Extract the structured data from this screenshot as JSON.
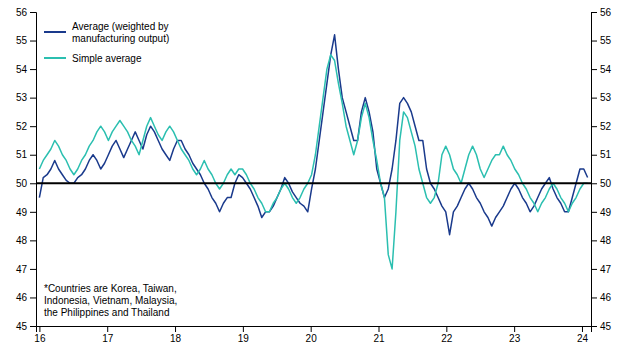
{
  "chart_data": {
    "type": "line",
    "x": [
      16.0,
      16.0565,
      16.113,
      16.1696,
      16.2261,
      16.2826,
      16.3391,
      16.3957,
      16.4522,
      16.5087,
      16.5652,
      16.6218,
      16.6783,
      16.7348,
      16.7913,
      16.8479,
      16.9044,
      16.9609,
      17.0174,
      17.074,
      17.1305,
      17.187,
      17.2435,
      17.3001,
      17.3566,
      17.4131,
      17.4696,
      17.5262,
      17.5827,
      17.6392,
      17.6957,
      17.7523,
      17.8088,
      17.8653,
      17.9218,
      17.9784,
      18.0349,
      18.0914,
      18.1479,
      18.2045,
      18.261,
      18.3175,
      18.374,
      18.4306,
      18.4871,
      18.5436,
      18.6001,
      18.6567,
      18.7132,
      18.7697,
      18.8262,
      18.8827,
      18.9393,
      18.9958,
      19.0523,
      19.1088,
      19.1654,
      19.2219,
      19.2784,
      19.3349,
      19.3915,
      19.448,
      19.5045,
      19.561,
      19.6176,
      19.6741,
      19.7306,
      19.7871,
      19.8437,
      19.9002,
      19.9567,
      20.0132,
      20.0698,
      20.1263,
      20.1828,
      20.2393,
      20.2959,
      20.3524,
      20.4089,
      20.4654,
      20.522,
      20.5785,
      20.635,
      20.6915,
      20.7481,
      20.8046,
      20.8611,
      20.9176,
      20.9742,
      21.0307,
      21.0872,
      21.1437,
      21.2003,
      21.2568,
      21.3133,
      21.3698,
      21.4263,
      21.4829,
      21.5394,
      21.5959,
      21.6524,
      21.709,
      21.7655,
      21.822,
      21.8785,
      21.9351,
      21.9916,
      22.0481,
      22.1046,
      22.1612,
      22.2177,
      22.2742,
      22.3307,
      22.3873,
      22.4438,
      22.5003,
      22.5568,
      22.6134,
      22.6699,
      22.7264,
      22.7829,
      22.8395,
      22.896,
      22.9525,
      23.009,
      23.0656,
      23.1221,
      23.1786,
      23.2351,
      23.2917,
      23.3482,
      23.4047,
      23.4612,
      23.5178,
      23.5743,
      23.6308,
      23.6873,
      23.7439,
      23.8004,
      23.8569,
      23.9134,
      23.97,
      24.0265,
      24.083
    ],
    "series": [
      {
        "name": "Average (weighted by\nmanufacturing output)",
        "color": "#1a3a8c",
        "values": [
          49.5,
          50.2,
          50.3,
          50.5,
          50.8,
          50.5,
          50.3,
          50.1,
          50.0,
          50.0,
          50.2,
          50.3,
          50.5,
          50.8,
          51.0,
          50.8,
          50.5,
          50.7,
          51.0,
          51.3,
          51.5,
          51.2,
          50.9,
          51.2,
          51.5,
          51.8,
          51.5,
          51.2,
          51.7,
          52.0,
          51.8,
          51.5,
          51.2,
          51.0,
          50.8,
          51.2,
          51.5,
          51.5,
          51.2,
          51.0,
          50.7,
          50.5,
          50.3,
          50.0,
          49.8,
          49.5,
          49.3,
          49.0,
          49.3,
          49.5,
          49.5,
          50.0,
          50.3,
          50.2,
          50.0,
          49.8,
          49.5,
          49.2,
          48.8,
          49.0,
          49.0,
          49.2,
          49.5,
          49.8,
          50.2,
          50.0,
          49.7,
          49.5,
          49.3,
          49.2,
          49.0,
          49.8,
          50.5,
          51.5,
          52.5,
          53.5,
          54.5,
          55.2,
          54.0,
          53.0,
          52.5,
          52.0,
          51.5,
          51.5,
          52.5,
          53.0,
          52.5,
          51.8,
          50.5,
          50.0,
          49.5,
          49.8,
          50.5,
          51.5,
          52.8,
          53.0,
          52.8,
          52.5,
          52.0,
          51.5,
          51.5,
          50.5,
          50.0,
          49.8,
          49.5,
          49.2,
          49.0,
          48.2,
          49.0,
          49.2,
          49.5,
          49.8,
          50.0,
          49.8,
          49.5,
          49.3,
          49.0,
          48.8,
          48.5,
          48.8,
          49.0,
          49.2,
          49.5,
          49.8,
          50.0,
          49.8,
          49.5,
          49.3,
          49.0,
          49.2,
          49.5,
          49.8,
          50.0,
          50.2,
          49.8,
          49.5,
          49.3,
          49.0,
          49.0,
          49.5,
          50.0,
          50.5,
          50.5,
          50.2
        ]
      },
      {
        "name": "Simple average",
        "color": "#2bbfb0",
        "values": [
          50.5,
          50.8,
          51.0,
          51.2,
          51.5,
          51.3,
          51.0,
          50.8,
          50.5,
          50.3,
          50.5,
          50.8,
          51.0,
          51.3,
          51.5,
          51.8,
          52.0,
          51.8,
          51.5,
          51.8,
          52.0,
          52.2,
          52.0,
          51.8,
          51.5,
          51.3,
          51.0,
          51.5,
          52.0,
          52.3,
          52.0,
          51.7,
          51.5,
          51.8,
          52.0,
          51.8,
          51.5,
          51.2,
          51.0,
          50.8,
          50.5,
          50.3,
          50.5,
          50.8,
          50.5,
          50.3,
          50.0,
          49.8,
          50.0,
          50.3,
          50.5,
          50.3,
          50.5,
          50.5,
          50.3,
          50.0,
          49.8,
          49.5,
          49.3,
          49.0,
          49.0,
          49.3,
          49.5,
          49.8,
          50.0,
          49.8,
          49.5,
          49.3,
          49.5,
          49.8,
          50.0,
          50.3,
          51.0,
          52.0,
          53.0,
          54.0,
          54.5,
          54.3,
          53.5,
          52.8,
          52.0,
          51.5,
          51.0,
          51.5,
          52.3,
          52.8,
          52.3,
          51.5,
          50.8,
          50.0,
          49.5,
          47.5,
          47.0,
          49.0,
          51.5,
          52.5,
          52.3,
          51.8,
          51.3,
          50.5,
          50.0,
          49.5,
          49.3,
          49.5,
          50.0,
          51.0,
          51.3,
          51.0,
          50.5,
          50.3,
          50.0,
          50.5,
          51.0,
          51.3,
          51.0,
          50.5,
          50.2,
          50.5,
          50.8,
          51.0,
          51.0,
          51.3,
          51.0,
          50.8,
          50.5,
          50.3,
          50.0,
          49.8,
          49.5,
          49.3,
          49.0,
          49.3,
          49.5,
          49.8,
          50.0,
          49.8,
          49.5,
          49.3,
          49.0,
          49.3,
          49.5,
          49.8,
          50.0,
          50.0
        ]
      }
    ],
    "reference_line": 50,
    "annotation": "*Countries are Korea, Taiwan,\nIndonesia, Vietnam, Malaysia,\nthe Philippines and Thailand",
    "xlim": [
      15.95,
      24.133
    ],
    "xticks": [
      16,
      17,
      18,
      19,
      20,
      21,
      22,
      23,
      24
    ],
    "ylim": [
      45,
      56
    ],
    "yticks": [
      45,
      46,
      47,
      48,
      49,
      50,
      51,
      52,
      53,
      54,
      55,
      56
    ],
    "y2lim": [
      45,
      56
    ],
    "y2ticks": [
      45,
      46,
      47,
      48,
      49,
      50,
      51,
      52,
      53,
      54,
      55,
      56
    ],
    "grid": false,
    "legend": "upper left"
  }
}
